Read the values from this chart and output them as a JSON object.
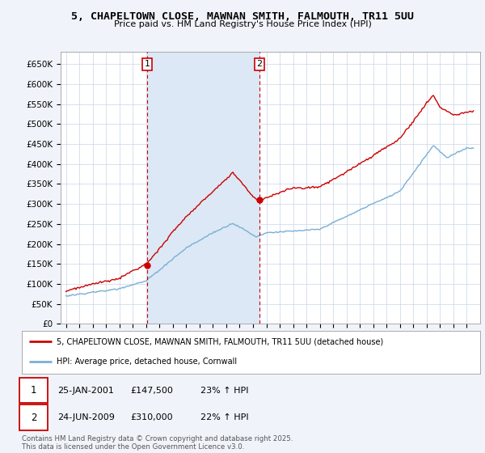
{
  "title": "5, CHAPELTOWN CLOSE, MAWNAN SMITH, FALMOUTH, TR11 5UU",
  "subtitle": "Price paid vs. HM Land Registry's House Price Index (HPI)",
  "yticks": [
    0,
    50000,
    100000,
    150000,
    200000,
    250000,
    300000,
    350000,
    400000,
    450000,
    500000,
    550000,
    600000,
    650000
  ],
  "ytick_labels": [
    "£0",
    "£50K",
    "£100K",
    "£150K",
    "£200K",
    "£250K",
    "£300K",
    "£350K",
    "£400K",
    "£450K",
    "£500K",
    "£550K",
    "£600K",
    "£650K"
  ],
  "hpi_color": "#7bafd4",
  "price_color": "#cc0000",
  "vline_color": "#cc0000",
  "shade_color": "#dce8f5",
  "transaction1_year": 2001.07,
  "transaction1_price": 147500,
  "transaction2_year": 2009.48,
  "transaction2_price": 310000,
  "legend_price_label": "5, CHAPELTOWN CLOSE, MAWNAN SMITH, FALMOUTH, TR11 5UU (detached house)",
  "legend_hpi_label": "HPI: Average price, detached house, Cornwall",
  "footer": "Contains HM Land Registry data © Crown copyright and database right 2025.\nThis data is licensed under the Open Government Licence v3.0.",
  "background_color": "#f0f4fa",
  "plot_bg_color": "#ffffff",
  "grid_color": "#c8d4e8",
  "xstart": 1995.0,
  "xend": 2025.5
}
